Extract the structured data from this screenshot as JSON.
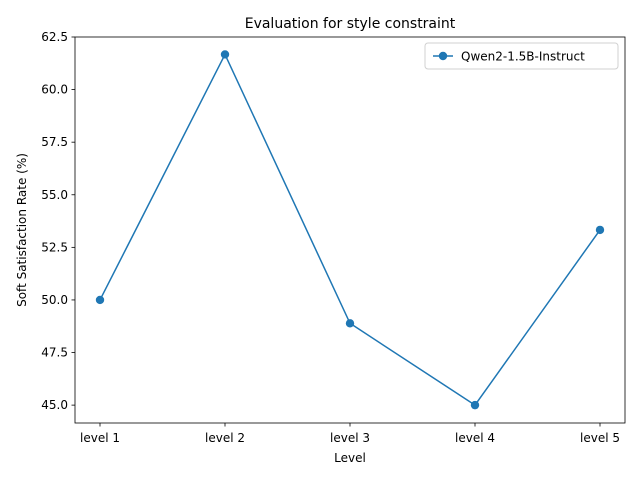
{
  "chart_data": {
    "type": "line",
    "title": "Evaluation for style constraint",
    "xlabel": "Level",
    "ylabel": "Soft Satisfaction Rate (%)",
    "categories": [
      "level 1",
      "level 2",
      "level 3",
      "level 4",
      "level 5"
    ],
    "ylim": [
      44.15,
      62.5
    ],
    "yticks": [
      "45.0",
      "47.5",
      "50.0",
      "52.5",
      "55.0",
      "57.5",
      "60.0",
      "62.5"
    ],
    "grid": false,
    "legend_position": "top-right",
    "series": [
      {
        "name": "Qwen2-1.5B-Instruct",
        "color": "#1f77b4",
        "marker": "circle",
        "values": [
          50.0,
          61.67,
          48.89,
          45.0,
          53.33
        ]
      }
    ]
  }
}
